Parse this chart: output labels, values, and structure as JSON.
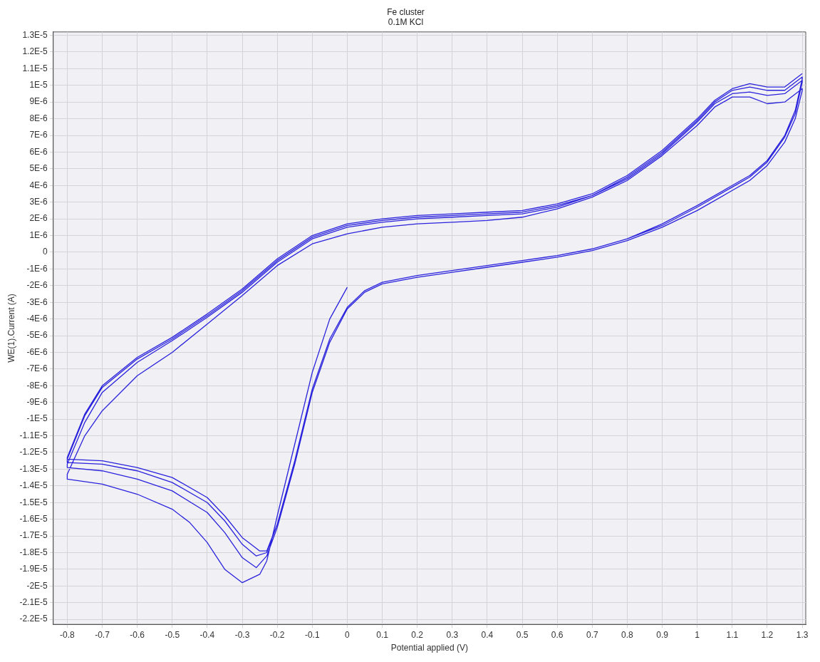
{
  "chart_data": {
    "type": "line",
    "title": "Fe cluster",
    "subtitle": "0.1M KCl",
    "xlabel": "Potential applied (V)",
    "ylabel": "WE(1).Current (A)",
    "xlim": [
      -0.84,
      1.31
    ],
    "ylim": [
      -2.23e-05,
      1.32e-05
    ],
    "xticks": [
      -0.8,
      -0.7,
      -0.6,
      -0.5,
      -0.4,
      -0.3,
      -0.2,
      -0.1,
      0,
      0.1,
      0.2,
      0.3,
      0.4,
      0.5,
      0.6,
      0.7,
      0.8,
      0.9,
      1,
      1.1,
      1.2,
      1.3
    ],
    "yticks": [
      {
        "value": 1.3e-05,
        "label": "1.3E-5"
      },
      {
        "value": 1.2e-05,
        "label": "1.2E-5"
      },
      {
        "value": 1.1e-05,
        "label": "1.1E-5"
      },
      {
        "value": 1e-05,
        "label": "1E-5"
      },
      {
        "value": 9e-06,
        "label": "9E-6"
      },
      {
        "value": 8e-06,
        "label": "8E-6"
      },
      {
        "value": 7e-06,
        "label": "7E-6"
      },
      {
        "value": 6e-06,
        "label": "6E-6"
      },
      {
        "value": 5e-06,
        "label": "5E-6"
      },
      {
        "value": 4e-06,
        "label": "4E-6"
      },
      {
        "value": 3e-06,
        "label": "3E-6"
      },
      {
        "value": 2e-06,
        "label": "2E-6"
      },
      {
        "value": 1e-06,
        "label": "1E-6"
      },
      0,
      {
        "value": -1e-06,
        "label": "-1E-6"
      },
      {
        "value": -2e-06,
        "label": "-2E-6"
      },
      {
        "value": -3e-06,
        "label": "-3E-6"
      },
      {
        "value": -4e-06,
        "label": "-4E-6"
      },
      {
        "value": -5e-06,
        "label": "-5E-6"
      },
      {
        "value": -6e-06,
        "label": "-6E-6"
      },
      {
        "value": -7e-06,
        "label": "-7E-6"
      },
      {
        "value": -8e-06,
        "label": "-8E-6"
      },
      {
        "value": -9e-06,
        "label": "-9E-6"
      },
      {
        "value": -1e-05,
        "label": "-1E-5"
      },
      {
        "value": -1.1e-05,
        "label": "-1.1E-5"
      },
      {
        "value": -1.2e-05,
        "label": "-1.2E-5"
      },
      {
        "value": -1.3e-05,
        "label": "-1.3E-5"
      },
      {
        "value": -1.4e-05,
        "label": "-1.4E-5"
      },
      {
        "value": -1.5e-05,
        "label": "-1.5E-5"
      },
      {
        "value": -1.6e-05,
        "label": "-1.6E-5"
      },
      {
        "value": -1.7e-05,
        "label": "-1.7E-5"
      },
      {
        "value": -1.8e-05,
        "label": "-1.8E-5"
      },
      {
        "value": -1.9e-05,
        "label": "-1.9E-5"
      },
      {
        "value": -2e-05,
        "label": "-2E-5"
      },
      {
        "value": -2.1e-05,
        "label": "-2.1E-5"
      },
      {
        "value": -2.2e-05,
        "label": "-2.2E-5"
      }
    ],
    "grid": true,
    "legend": false,
    "marker": "none",
    "line_style": "solid",
    "series": [
      {
        "color": "#2a22dc",
        "x": [
          0,
          -0.05,
          -0.1,
          -0.15,
          -0.2,
          -0.23,
          -0.25,
          -0.3,
          -0.35,
          -0.4,
          -0.45,
          -0.5,
          -0.6,
          -0.7,
          -0.8,
          -0.8,
          -0.75,
          -0.7,
          -0.6,
          -0.5,
          -0.4,
          -0.3,
          -0.2,
          -0.1,
          0,
          0.1,
          0.2,
          0.3,
          0.4,
          0.5,
          0.6,
          0.7,
          0.8,
          0.9,
          1.0,
          1.05,
          1.1,
          1.15,
          1.2,
          1.25,
          1.3,
          1.3,
          1.28,
          1.25,
          1.2,
          1.15,
          1.1,
          1.0,
          0.9,
          0.8,
          0.7,
          0.6,
          0.5,
          0.4,
          0.3,
          0.2,
          0.1,
          0.05,
          0,
          -0.05,
          -0.1,
          -0.15,
          -0.2,
          -0.23,
          -0.26,
          -0.3,
          -0.35,
          -0.4,
          -0.5,
          -0.6,
          -0.7,
          -0.8,
          -0.8,
          -0.75,
          -0.7,
          -0.6,
          -0.5,
          -0.4,
          -0.3,
          -0.2,
          -0.1,
          0,
          0.1,
          0.2,
          0.3,
          0.4,
          0.5,
          0.6,
          0.7,
          0.8,
          0.9,
          1.0,
          1.05,
          1.1,
          1.15,
          1.2,
          1.25,
          1.3,
          1.3,
          1.28,
          1.25,
          1.2,
          1.15,
          1.1,
          1.0,
          0.9,
          0.8,
          0.7,
          0.6,
          0.5,
          0.4,
          0.3,
          0.2,
          0.1,
          0.05,
          0,
          -0.05,
          -0.1,
          -0.15,
          -0.2,
          -0.23,
          -0.26,
          -0.3,
          -0.35,
          -0.4,
          -0.5,
          -0.6,
          -0.7,
          -0.8,
          -0.8,
          -0.75,
          -0.7,
          -0.6,
          -0.5,
          -0.4,
          -0.3,
          -0.2,
          -0.1,
          0,
          0.1,
          0.2,
          0.3,
          0.4,
          0.5,
          0.6,
          0.7,
          0.8,
          0.9,
          1.0,
          1.05,
          1.1,
          1.15,
          1.2,
          1.25,
          1.3,
          1.3,
          1.28,
          1.25,
          1.2,
          1.15,
          1.1,
          1.0,
          0.9,
          0.8,
          0.7,
          0.6,
          0.5,
          0.4,
          0.3,
          0.2,
          0.1,
          0.05,
          0,
          -0.05,
          -0.1,
          -0.15,
          -0.2,
          -0.23,
          -0.25,
          -0.3,
          -0.35,
          -0.4,
          -0.5,
          -0.6,
          -0.7,
          -0.8,
          -0.8,
          -0.75,
          -0.7,
          -0.6,
          -0.5,
          -0.4,
          -0.3,
          -0.2,
          -0.1,
          0,
          0.1,
          0.2,
          0.3,
          0.4,
          0.5,
          0.6,
          0.7,
          0.8,
          0.9,
          1.0,
          1.05,
          1.1,
          1.15,
          1.2,
          1.25,
          1.3
        ],
        "values": [
          -2.1e-06,
          -4e-06,
          -7.2e-06,
          -1.15e-05,
          -1.58e-05,
          -1.85e-05,
          -1.93e-05,
          -1.98e-05,
          -1.9e-05,
          -1.74e-05,
          -1.62e-05,
          -1.54e-05,
          -1.45e-05,
          -1.39e-05,
          -1.36e-05,
          -1.33e-05,
          -1.1e-05,
          -9.5e-06,
          -7.4e-06,
          -6e-06,
          -4.3e-06,
          -2.6e-06,
          -8e-07,
          5e-07,
          1.1e-06,
          1.5e-06,
          1.7e-06,
          1.8e-06,
          1.9e-06,
          2.1e-06,
          2.6e-06,
          3.3e-06,
          4.3e-06,
          5.8e-06,
          7.6e-06,
          8.7e-06,
          9.3e-06,
          9.3e-06,
          8.9e-06,
          9e-06,
          9.8e-06,
          9.7e-06,
          8e-06,
          6.6e-06,
          5.2e-06,
          4.3e-06,
          3.7e-06,
          2.5e-06,
          1.5e-06,
          7e-07,
          1e-07,
          -3e-07,
          -6e-07,
          -9e-07,
          -1.2e-06,
          -1.5e-06,
          -1.9e-06,
          -2.4e-06,
          -3.4e-06,
          -5.4e-06,
          -8.4e-06,
          -1.27e-05,
          -1.65e-05,
          -1.82e-05,
          -1.89e-05,
          -1.83e-05,
          -1.68e-05,
          -1.56e-05,
          -1.43e-05,
          -1.36e-05,
          -1.31e-05,
          -1.29e-05,
          -1.27e-05,
          -1.02e-05,
          -8.4e-06,
          -6.6e-06,
          -5.3e-06,
          -3.9e-06,
          -2.4e-06,
          -6e-07,
          8e-07,
          1.5e-06,
          1.8e-06,
          2e-06,
          2.1e-06,
          2.2e-06,
          2.3e-06,
          2.7e-06,
          3.4e-06,
          4.4e-06,
          5.9e-06,
          7.8e-06,
          8.9e-06,
          9.5e-06,
          9.6e-06,
          9.4e-06,
          9.5e-06,
          1.03e-05,
          1.02e-05,
          8.3e-06,
          6.9e-06,
          5.4e-06,
          4.5e-06,
          3.9e-06,
          2.7e-06,
          1.6e-06,
          8e-07,
          2e-07,
          -2e-07,
          -5e-07,
          -8e-07,
          -1.1e-06,
          -1.4e-06,
          -1.8e-06,
          -2.3e-06,
          -3.3e-06,
          -5.2e-06,
          -8.2e-06,
          -1.25e-05,
          -1.63e-05,
          -1.8e-05,
          -1.82e-05,
          -1.75e-05,
          -1.61e-05,
          -1.5e-05,
          -1.38e-05,
          -1.31e-05,
          -1.27e-05,
          -1.26e-05,
          -1.24e-05,
          -9.8e-06,
          -8.1e-06,
          -6.4e-06,
          -5.2e-06,
          -3.8e-06,
          -2.3e-06,
          -5e-07,
          9e-07,
          1.6e-06,
          1.9e-06,
          2.1e-06,
          2.2e-06,
          2.3e-06,
          2.4e-06,
          2.8e-06,
          3.4e-06,
          4.5e-06,
          6e-06,
          7.9e-06,
          9e-06,
          9.7e-06,
          9.9e-06,
          9.7e-06,
          9.7e-06,
          1.05e-05,
          1.04e-05,
          8.5e-06,
          7e-06,
          5.5e-06,
          4.6e-06,
          4e-06,
          2.8e-06,
          1.7e-06,
          8e-07,
          2e-07,
          -2e-07,
          -5e-07,
          -8e-07,
          -1.1e-06,
          -1.4e-06,
          -1.8e-06,
          -2.3e-06,
          -3.3e-06,
          -5.2e-06,
          -8.2e-06,
          -1.25e-05,
          -1.63e-05,
          -1.79e-05,
          -1.79e-05,
          -1.71e-05,
          -1.58e-05,
          -1.47e-05,
          -1.35e-05,
          -1.29e-05,
          -1.25e-05,
          -1.24e-05,
          -1.23e-05,
          -9.7e-06,
          -8e-06,
          -6.3e-06,
          -5.1e-06,
          -3.7e-06,
          -2.2e-06,
          -4e-07,
          1e-06,
          1.7e-06,
          2e-06,
          2.2e-06,
          2.3e-06,
          2.4e-06,
          2.5e-06,
          2.9e-06,
          3.5e-06,
          4.6e-06,
          6.1e-06,
          8e-06,
          9.1e-06,
          9.8e-06,
          1.01e-05,
          9.9e-06,
          9.9e-06,
          1.07e-05
        ]
      }
    ]
  }
}
